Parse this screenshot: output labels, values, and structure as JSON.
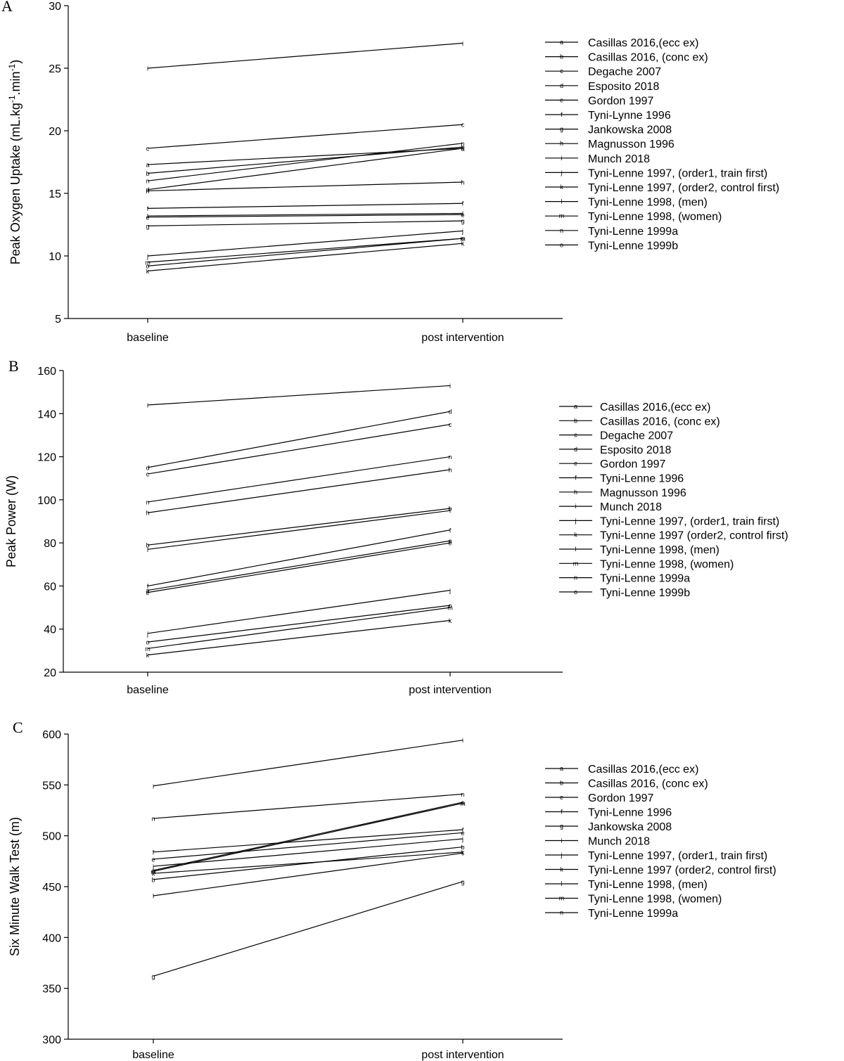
{
  "chart_data": [
    {
      "type": "line",
      "panel": "A",
      "title": "",
      "xlabel": "",
      "ylabel": "Peak Oxygen Uptake (mL.kg-1.min-1)",
      "ylabel_parts": {
        "base": "Peak Oxygen Uptake (mL.kg",
        "sup1": "-1",
        "mid": ".min",
        "sup2": "-1",
        "end": ")"
      },
      "categories": [
        "baseline",
        "post intervention"
      ],
      "ylim": [
        5,
        30
      ],
      "yticks": [
        5,
        10,
        15,
        20,
        25,
        30
      ],
      "legend_position": "right",
      "series": [
        {
          "marker": "a",
          "name": "Casillas 2016,(ecc ex)",
          "values": [
            17.3,
            18.6
          ]
        },
        {
          "marker": "b",
          "name": "Casillas 2016, (conc ex)",
          "values": [
            16.6,
            18.7
          ]
        },
        {
          "marker": "c",
          "name": "Degache 2007",
          "values": [
            18.6,
            20.5
          ]
        },
        {
          "marker": "d",
          "name": "Esposito 2018",
          "values": [
            15.3,
            18.6
          ]
        },
        {
          "marker": "e",
          "name": "Gordon 1997",
          "values": [
            13.1,
            13.3
          ]
        },
        {
          "marker": "f",
          "name": "Tyni-Lynne 1996",
          "values": [
            13.8,
            14.2
          ]
        },
        {
          "marker": "g",
          "name": "Jankowska 2008",
          "values": [
            12.4,
            12.8
          ]
        },
        {
          "marker": "h",
          "name": "Magnusson 1996",
          "values": [
            15.2,
            15.9
          ]
        },
        {
          "marker": "i",
          "name": "Munch 2018",
          "values": [
            25.0,
            27.0
          ]
        },
        {
          "marker": "j",
          "name": "Tyni-Lenne 1997, (order1, train first)",
          "values": [
            10.0,
            12.0
          ]
        },
        {
          "marker": "k",
          "name": "Tyni-Lenne 1997, (order2, control first)",
          "values": [
            8.8,
            11.0
          ]
        },
        {
          "marker": "l",
          "name": "Tyni-Lenne 1998, (men)",
          "values": [
            13.2,
            13.4
          ]
        },
        {
          "marker": "m",
          "name": "Tyni-Lenne 1998, (women)",
          "values": [
            9.5,
            11.4
          ]
        },
        {
          "marker": "n",
          "name": "Tyni-Lenne 1999a",
          "values": [
            16.0,
            19.0
          ]
        },
        {
          "marker": "o",
          "name": "Tyni-Lenne 1999b",
          "values": [
            9.2,
            11.4
          ]
        }
      ]
    },
    {
      "type": "line",
      "panel": "B",
      "title": "",
      "xlabel": "",
      "ylabel": "Peak Power (W)",
      "categories": [
        "baseline",
        "post intervention"
      ],
      "ylim": [
        20,
        160
      ],
      "yticks": [
        20,
        40,
        60,
        80,
        100,
        120,
        140,
        160
      ],
      "legend_position": "right",
      "series": [
        {
          "marker": "a",
          "name": "Casillas 2016,(ecc ex)",
          "values": [
            58,
            81
          ]
        },
        {
          "marker": "b",
          "name": "Casillas 2016, (conc ex)",
          "values": [
            79,
            96
          ]
        },
        {
          "marker": "c",
          "name": "Degache 2007",
          "values": [
            112,
            135
          ]
        },
        {
          "marker": "d",
          "name": "Esposito 2018",
          "values": [
            115,
            141
          ]
        },
        {
          "marker": "e",
          "name": "Gordon 1997",
          "values": [
            57,
            80
          ]
        },
        {
          "marker": "f",
          "name": "Tyni-Lenne 1996",
          "values": [
            60,
            86
          ]
        },
        {
          "marker": "h",
          "name": "Magnusson 1996",
          "values": [
            94,
            114
          ]
        },
        {
          "marker": "i",
          "name": "Munch 2018",
          "values": [
            144,
            153
          ]
        },
        {
          "marker": "j",
          "name": "Tyni-Lenne 1997, (order1, train first)",
          "values": [
            38,
            58
          ]
        },
        {
          "marker": "k",
          "name": "Tyni-Lenne 1997 (order2, control first)",
          "values": [
            28,
            44
          ]
        },
        {
          "marker": "l",
          "name": "Tyni-Lenne 1998, (men)",
          "values": [
            77,
            95
          ]
        },
        {
          "marker": "m",
          "name": "Tyni-Lenne 1998, (women)",
          "values": [
            31,
            50
          ]
        },
        {
          "marker": "n",
          "name": "Tyni-Lenne 1999a",
          "values": [
            99,
            120
          ]
        },
        {
          "marker": "o",
          "name": "Tyni-Lenne 1999b",
          "values": [
            34,
            51
          ]
        }
      ]
    },
    {
      "type": "line",
      "panel": "C",
      "title": "",
      "xlabel": "",
      "ylabel": "Six Minute Walk Test (m)",
      "categories": [
        "baseline",
        "post intervention"
      ],
      "ylim": [
        300,
        600
      ],
      "yticks": [
        300,
        350,
        400,
        450,
        500,
        550,
        600
      ],
      "legend_position": "right",
      "series": [
        {
          "marker": "a",
          "name": "Casillas 2016,(ecc ex)",
          "values": [
            466,
            533
          ]
        },
        {
          "marker": "b",
          "name": "Casillas 2016, (conc ex)",
          "values": [
            457,
            489
          ]
        },
        {
          "marker": "e",
          "name": "Gordon 1997",
          "values": [
            477,
            503
          ]
        },
        {
          "marker": "f",
          "name": "Tyni-Lenne 1996",
          "values": [
            484,
            506
          ]
        },
        {
          "marker": "g",
          "name": "Jankowska 2008",
          "values": [
            362,
            455
          ]
        },
        {
          "marker": "i",
          "name": "Munch 2018",
          "values": [
            549,
            594
          ]
        },
        {
          "marker": "j",
          "name": "Tyni-Lenne 1997, (order1, train first)",
          "values": [
            470,
            497
          ]
        },
        {
          "marker": "k",
          "name": "Tyni-Lenne 1997 (order2, control first)",
          "values": [
            463,
            484
          ]
        },
        {
          "marker": "l",
          "name": "Tyni-Lenne 1998, (men)",
          "values": [
            441,
            483
          ]
        },
        {
          "marker": "m",
          "name": "Tyni-Lenne 1998, (women)",
          "values": [
            465,
            532
          ]
        },
        {
          "marker": "n",
          "name": "Tyni-Lenne 1999a",
          "values": [
            517,
            541
          ]
        }
      ]
    }
  ]
}
